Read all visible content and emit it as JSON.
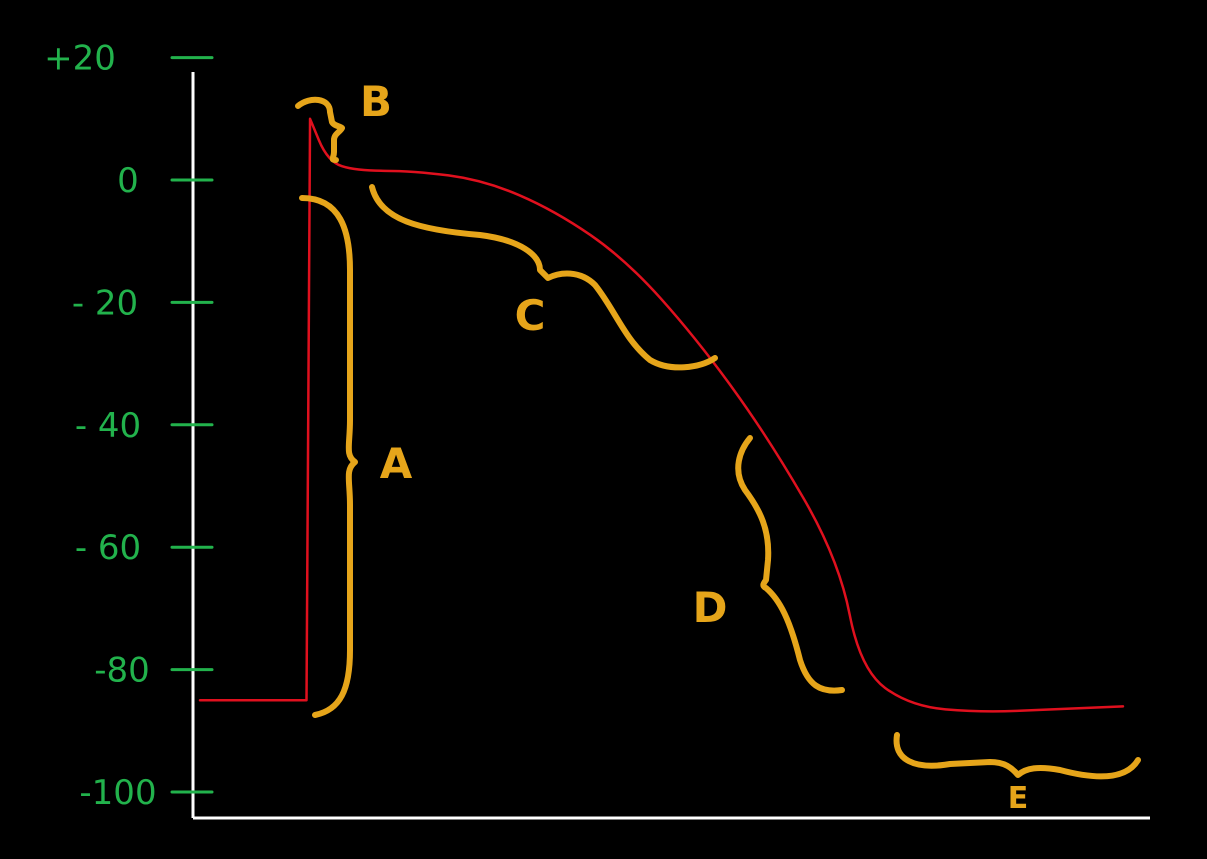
{
  "chart_data": {
    "type": "line",
    "title": "",
    "xlabel": "",
    "ylabel": "",
    "ylim": [
      -100,
      20
    ],
    "y_ticks": [
      "+20",
      "0",
      "- 20",
      "- 40",
      "- 60",
      "-80",
      "-100"
    ],
    "y_tick_values": [
      20,
      0,
      -20,
      -40,
      -60,
      -80,
      -100
    ],
    "grid": false,
    "colors": {
      "trace": "#e0101e",
      "axes": "#ffffff",
      "ticks": "#22b24c",
      "annotations": "#e6a51a"
    },
    "series": [
      {
        "values_note": "",
        "points": [
          [
            0,
            -85
          ],
          [
            1.5,
            -85
          ],
          [
            1.55,
            10
          ],
          [
            1.8,
            3
          ],
          [
            2.2,
            1.5
          ],
          [
            3,
            1.5
          ],
          [
            4,
            0
          ],
          [
            5,
            -5
          ],
          [
            6,
            -13
          ],
          [
            7,
            -26
          ],
          [
            8,
            -42
          ],
          [
            9,
            -62
          ],
          [
            9.3,
            -80
          ],
          [
            10,
            -86
          ],
          [
            11,
            -87
          ],
          [
            12,
            -86.5
          ],
          [
            13,
            -86
          ]
        ]
      }
    ],
    "annotations": [
      {
        "label": "A",
        "from": -85,
        "to": 0
      },
      {
        "label": "B",
        "from": 2,
        "to": 10
      },
      {
        "label": "C",
        "from": 0,
        "to": -25
      },
      {
        "label": "D",
        "from": -40,
        "to": -80
      },
      {
        "label": "E",
        "from": -86,
        "to": -86
      }
    ]
  }
}
